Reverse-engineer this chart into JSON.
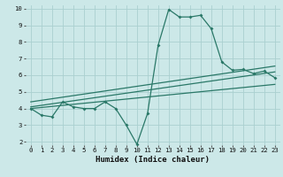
{
  "xlabel": "Humidex (Indice chaleur)",
  "bg_color": "#cce8e8",
  "grid_color": "#aad0d0",
  "line_color": "#2a7868",
  "xlim": [
    -0.5,
    23.5
  ],
  "ylim": [
    1.8,
    10.2
  ],
  "xticks": [
    0,
    1,
    2,
    3,
    4,
    5,
    6,
    7,
    8,
    9,
    10,
    11,
    12,
    13,
    14,
    15,
    16,
    17,
    18,
    19,
    20,
    21,
    22,
    23
  ],
  "yticks": [
    2,
    3,
    4,
    5,
    6,
    7,
    8,
    9,
    10
  ],
  "series1_x": [
    0,
    1,
    2,
    3,
    4,
    5,
    6,
    7,
    8,
    9,
    10,
    11,
    12,
    13,
    14,
    15,
    16,
    17,
    18,
    19,
    20,
    21,
    22,
    23
  ],
  "series1_y": [
    4.0,
    3.6,
    3.5,
    4.4,
    4.1,
    4.0,
    4.0,
    4.4,
    4.0,
    3.0,
    1.85,
    3.7,
    7.8,
    9.95,
    9.5,
    9.5,
    9.6,
    8.8,
    6.8,
    6.3,
    6.35,
    6.1,
    6.25,
    5.85
  ],
  "series2_x": [
    0,
    23
  ],
  "series2_y": [
    4.1,
    6.2
  ],
  "series3_x": [
    0,
    23
  ],
  "series3_y": [
    4.4,
    6.55
  ],
  "series4_x": [
    0,
    23
  ],
  "series4_y": [
    4.0,
    5.45
  ]
}
